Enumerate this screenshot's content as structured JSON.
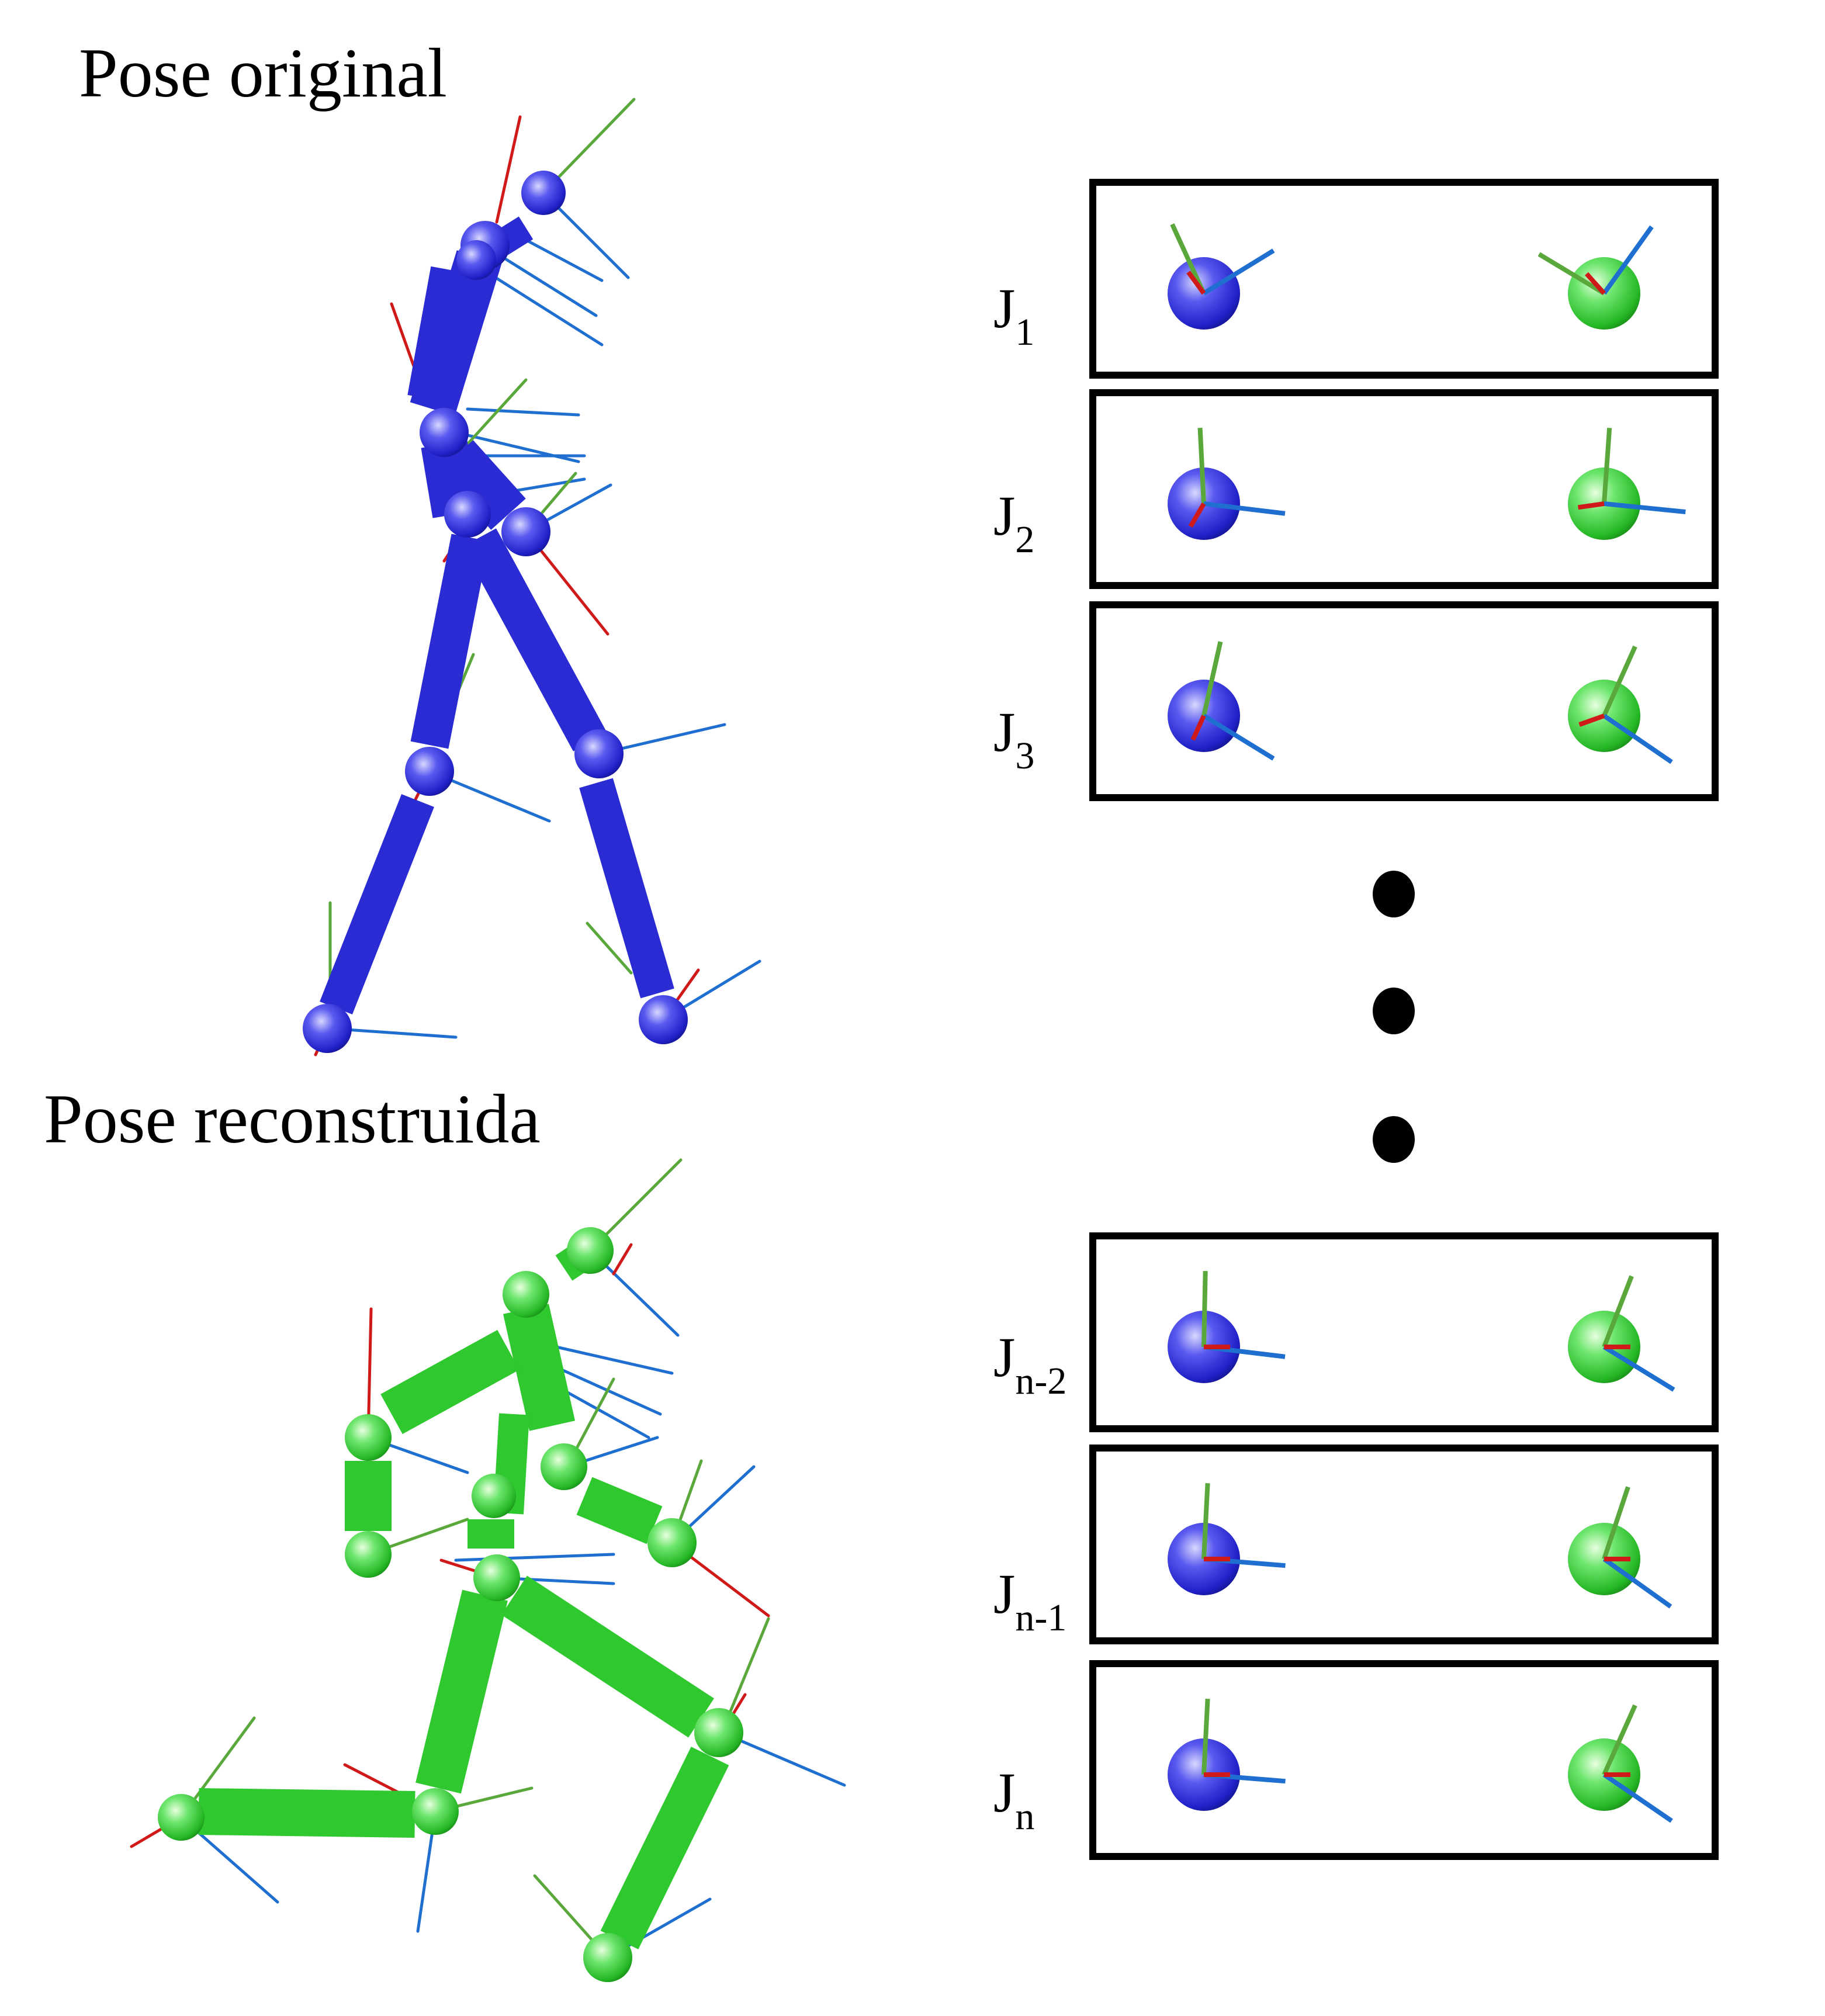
{
  "titles": {
    "original": "Pose original",
    "reconstructed": "Pose reconstruida"
  },
  "colors": {
    "original_pose": "#2b2bd4",
    "reconstructed_pose": "#2fc82f",
    "axis_x": "#d01a1a",
    "axis_y": "#5aa83c",
    "axis_z": "#1f6fd0",
    "panel_border": "#000000"
  },
  "joints": [
    {
      "label": "J",
      "sub": "1"
    },
    {
      "label": "J",
      "sub": "2"
    },
    {
      "label": "J",
      "sub": "3"
    },
    {
      "label": "J",
      "sub": "n-2"
    },
    {
      "label": "J",
      "sub": "n-1"
    },
    {
      "label": "J",
      "sub": "n"
    }
  ],
  "ellipsis": [
    "dot",
    "dot",
    "dot"
  ]
}
